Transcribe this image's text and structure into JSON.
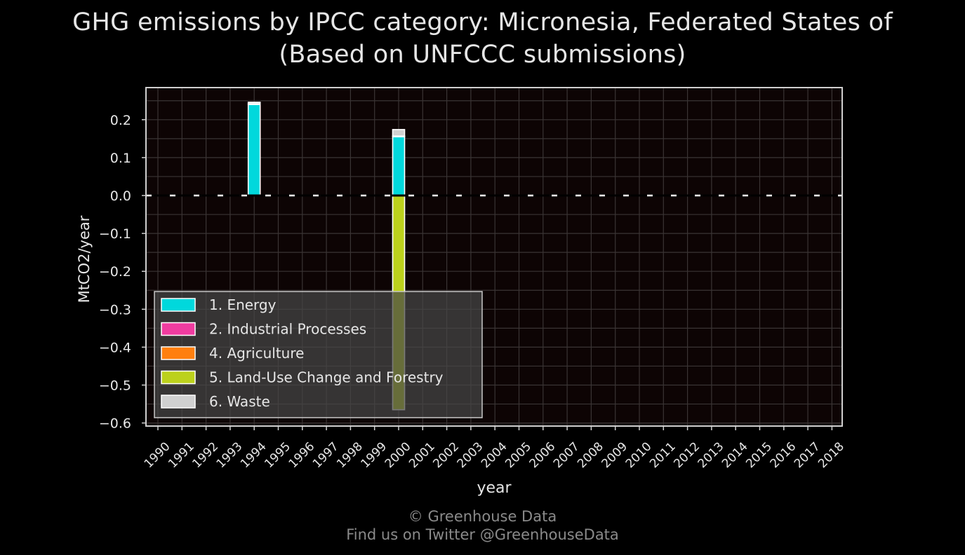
{
  "title_line1": "GHG emissions by IPCC category: Micronesia, Federated States of",
  "title_line2": "(Based on UNFCCC submissions)",
  "footer": {
    "credit": "© Greenhouse Data",
    "social": "Find us on Twitter @GreenhouseData"
  },
  "chart_data": {
    "type": "bar",
    "stacked": true,
    "xlabel": "year",
    "ylabel": "MtCO2/year",
    "ylim": [
      -0.6,
      0.25
    ],
    "yticks": [
      0.2,
      0.1,
      0.0,
      -0.1,
      -0.2,
      -0.3,
      -0.4,
      -0.5,
      -0.6
    ],
    "ytick_labels": [
      "0.2",
      "0.1",
      "0.0",
      "−0.1",
      "−0.2",
      "−0.3",
      "−0.4",
      "−0.5",
      "−0.6"
    ],
    "categories": [
      "1990",
      "1991",
      "1992",
      "1993",
      "1994",
      "1995",
      "1996",
      "1997",
      "1998",
      "1999",
      "2000",
      "2001",
      "2002",
      "2003",
      "2004",
      "2005",
      "2006",
      "2007",
      "2008",
      "2009",
      "2010",
      "2011",
      "2012",
      "2013",
      "2014",
      "2015",
      "2016",
      "2017",
      "2018"
    ],
    "grid": true,
    "zero_line": "dashed",
    "legend_position": "lower-left",
    "series": [
      {
        "name": "1. Energy",
        "color": "#00d8dc",
        "values": [
          0,
          0,
          0,
          0,
          0.24,
          0,
          0,
          0,
          0,
          0,
          0.155,
          0,
          0,
          0,
          0,
          0,
          0,
          0,
          0,
          0,
          0,
          0,
          0,
          0,
          0,
          0,
          0,
          0,
          0
        ]
      },
      {
        "name": "2. Industrial Processes",
        "color": "#f03ca0",
        "values": [
          0,
          0,
          0,
          0,
          0,
          0,
          0,
          0,
          0,
          0,
          0,
          0,
          0,
          0,
          0,
          0,
          0,
          0,
          0,
          0,
          0,
          0,
          0,
          0,
          0,
          0,
          0,
          0,
          0
        ]
      },
      {
        "name": "4. Agriculture",
        "color": "#ff7f0e",
        "values": [
          0,
          0,
          0,
          0,
          0.002,
          0,
          0,
          0,
          0,
          0,
          0.002,
          0,
          0,
          0,
          0,
          0,
          0,
          0,
          0,
          0,
          0,
          0,
          0,
          0,
          0,
          0,
          0,
          0,
          0
        ]
      },
      {
        "name": "5. Land-Use Change and Forestry",
        "color": "#bcd11c",
        "values": [
          0,
          0,
          0,
          0,
          0,
          0,
          0,
          0,
          0,
          0,
          -0.565,
          0,
          0,
          0,
          0,
          0,
          0,
          0,
          0,
          0,
          0,
          0,
          0,
          0,
          0,
          0,
          0,
          0,
          0
        ]
      },
      {
        "name": "6. Waste",
        "color": "#d0d0d0",
        "values": [
          0,
          0,
          0,
          0,
          0.004,
          0,
          0,
          0,
          0,
          0,
          0.017,
          0,
          0,
          0,
          0,
          0,
          0,
          0,
          0,
          0,
          0,
          0,
          0,
          0,
          0,
          0,
          0,
          0,
          0
        ]
      }
    ]
  }
}
